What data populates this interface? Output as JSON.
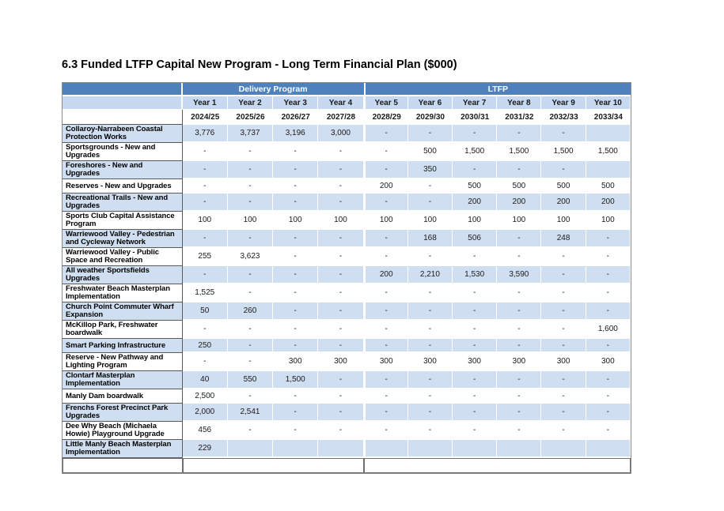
{
  "page": {
    "title": "6.3 Funded LTFP Capital New Program - Long Term Financial Plan ($000)"
  },
  "table": {
    "column_groups": [
      {
        "label": "Delivery Program",
        "span": 4
      },
      {
        "label": "LTFP",
        "span": 6
      }
    ],
    "year_headers": [
      "Year 1",
      "Year 2",
      "Year 3",
      "Year 4",
      "Year 5",
      "Year 6",
      "Year 7",
      "Year 8",
      "Year 9",
      "Year 10"
    ],
    "fiscal_years": [
      "2024/25",
      "2025/26",
      "2026/27",
      "2027/28",
      "2028/29",
      "2029/30",
      "2030/31",
      "2031/32",
      "2032/33",
      "2033/34"
    ],
    "rows": [
      {
        "label": "Collaroy-Narrabeen Coastal Protection Works",
        "values": [
          "3,776",
          "3,737",
          "3,196",
          "3,000",
          "-",
          "-",
          "-",
          "-",
          "-",
          ""
        ]
      },
      {
        "label": "Sportsgrounds - New and Upgrades",
        "values": [
          "-",
          "-",
          "-",
          "-",
          "-",
          "500",
          "1,500",
          "1,500",
          "1,500",
          "1,500"
        ]
      },
      {
        "label": "Foreshores - New and Upgrades",
        "values": [
          "-",
          "-",
          "-",
          "-",
          "-",
          "350",
          "-",
          "-",
          "-",
          ""
        ]
      },
      {
        "label": "Reserves - New and Upgrades",
        "values": [
          "-",
          "-",
          "-",
          "-",
          "200",
          "-",
          "500",
          "500",
          "500",
          "500"
        ]
      },
      {
        "label": "Recreational Trails - New and Upgrades",
        "values": [
          "-",
          "-",
          "-",
          "-",
          "-",
          "-",
          "200",
          "200",
          "200",
          "200"
        ]
      },
      {
        "label": "Sports Club Capital Assistance Program",
        "values": [
          "100",
          "100",
          "100",
          "100",
          "100",
          "100",
          "100",
          "100",
          "100",
          "100"
        ]
      },
      {
        "label": "Warriewood Valley - Pedestrian and Cycleway Network",
        "values": [
          "-",
          "-",
          "-",
          "-",
          "-",
          "168",
          "506",
          "-",
          "248",
          "-"
        ]
      },
      {
        "label": "Warriewood Valley - Public Space and Recreation",
        "values": [
          "255",
          "3,623",
          "-",
          "-",
          "-",
          "-",
          "-",
          "-",
          "-",
          "-"
        ]
      },
      {
        "label": "All weather Sportsfields Upgrades",
        "values": [
          "-",
          "-",
          "-",
          "-",
          "200",
          "2,210",
          "1,530",
          "3,590",
          "-",
          "-"
        ]
      },
      {
        "label": "Freshwater Beach Masterplan Implementation",
        "values": [
          "1,525",
          "-",
          "-",
          "-",
          "-",
          "-",
          "-",
          "-",
          "-",
          "-"
        ]
      },
      {
        "label": "Church Point Commuter Wharf Expansion",
        "values": [
          "50",
          "260",
          "-",
          "-",
          "-",
          "-",
          "-",
          "-",
          "-",
          "-"
        ]
      },
      {
        "label": "McKillop Park, Freshwater boardwalk",
        "values": [
          "-",
          "-",
          "-",
          "-",
          "-",
          "-",
          "-",
          "-",
          "-",
          "1,600"
        ]
      },
      {
        "label": "Smart Parking Infrastructure",
        "values": [
          "250",
          "-",
          "-",
          "-",
          "-",
          "-",
          "-",
          "-",
          "-",
          "-"
        ]
      },
      {
        "label": "Reserve - New Pathway and Lighting Program",
        "values": [
          "-",
          "-",
          "300",
          "300",
          "300",
          "300",
          "300",
          "300",
          "300",
          "300"
        ]
      },
      {
        "label": "Clontarf Masterplan Implementation",
        "values": [
          "40",
          "550",
          "1,500",
          "-",
          "-",
          "-",
          "-",
          "-",
          "-",
          "-"
        ]
      },
      {
        "label": "Manly Dam boardwalk",
        "values": [
          "2,500",
          "-",
          "-",
          "-",
          "-",
          "-",
          "-",
          "-",
          "-",
          "-"
        ]
      },
      {
        "label": "Frenchs Forest Precinct Park Upgrades",
        "values": [
          "2,000",
          "2,541",
          "-",
          "-",
          "-",
          "-",
          "-",
          "-",
          "-",
          "-"
        ]
      },
      {
        "label": "Dee Why Beach (Michaela Howie) Playground Upgrade",
        "values": [
          "456",
          "-",
          "-",
          "-",
          "-",
          "-",
          "-",
          "-",
          "-",
          "-"
        ]
      },
      {
        "label": "Little Manly Beach Masterplan Implementation",
        "values": [
          "229",
          "",
          "",
          "",
          "",
          "",
          "",
          "",
          "",
          ""
        ]
      }
    ],
    "colors": {
      "band_blue": "#4f81bd",
      "header_light_blue": "#c6d9f1",
      "row_light_blue": "#cfdff1",
      "label_border": "#595959"
    }
  }
}
